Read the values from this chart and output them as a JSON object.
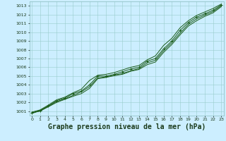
{
  "title": "Graphe pression niveau de la mer (hPa)",
  "title_fontsize": 7,
  "bg_color": "#cceeff",
  "grid_color": "#99cccc",
  "line_color": "#1a5c1a",
  "x_ticks": [
    0,
    1,
    2,
    3,
    4,
    5,
    6,
    7,
    8,
    9,
    10,
    11,
    12,
    13,
    14,
    15,
    16,
    17,
    18,
    19,
    20,
    21,
    22,
    23
  ],
  "ylim": [
    1000.5,
    1013.5
  ],
  "xlim": [
    -0.3,
    23.3
  ],
  "yticks": [
    1001,
    1002,
    1003,
    1004,
    1005,
    1006,
    1007,
    1008,
    1009,
    1010,
    1011,
    1012,
    1013
  ],
  "line1": [
    1000.8,
    1001.1,
    1001.6,
    1002.2,
    1002.5,
    1003.0,
    1003.3,
    1004.0,
    1005.0,
    1005.0,
    1005.2,
    1005.5,
    1005.8,
    1006.0,
    1006.7,
    1007.0,
    1008.1,
    1009.0,
    1010.2,
    1011.1,
    1011.7,
    1012.1,
    1012.5,
    1013.1
  ],
  "line2": [
    1000.9,
    1001.15,
    1001.7,
    1002.3,
    1002.6,
    1003.1,
    1003.5,
    1004.5,
    1005.1,
    1005.2,
    1005.4,
    1005.7,
    1006.0,
    1006.2,
    1006.85,
    1007.3,
    1008.5,
    1009.3,
    1010.5,
    1011.3,
    1011.9,
    1012.3,
    1012.7,
    1013.2
  ],
  "line3": [
    1000.85,
    1001.0,
    1001.55,
    1002.1,
    1002.4,
    1002.8,
    1003.2,
    1003.8,
    1004.8,
    1004.9,
    1005.1,
    1005.3,
    1005.6,
    1005.85,
    1006.5,
    1006.8,
    1007.9,
    1008.8,
    1009.9,
    1010.9,
    1011.5,
    1011.95,
    1012.35,
    1013.0
  ],
  "line4": [
    1000.75,
    1001.05,
    1001.5,
    1002.0,
    1002.35,
    1002.7,
    1003.0,
    1003.6,
    1004.7,
    1004.85,
    1005.05,
    1005.2,
    1005.55,
    1005.75,
    1006.3,
    1006.6,
    1007.7,
    1008.6,
    1009.7,
    1010.7,
    1011.3,
    1011.8,
    1012.2,
    1012.9
  ]
}
